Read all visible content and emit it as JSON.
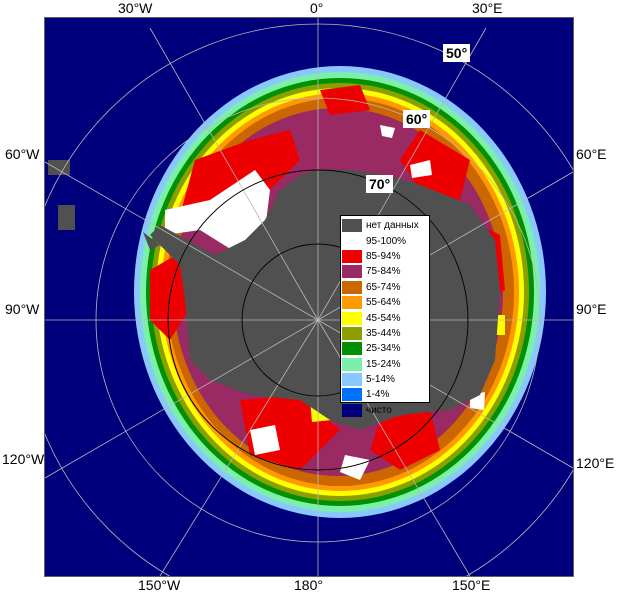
{
  "map": {
    "longitude_labels": {
      "top": [
        {
          "text": "30°W",
          "side": "top"
        },
        {
          "text": "0°",
          "side": "top"
        },
        {
          "text": "30°E",
          "side": "top"
        }
      ],
      "left": [
        "60°W",
        "90°W",
        "120°W"
      ],
      "right": [
        "60°E",
        "90°E",
        "120°E"
      ],
      "bottom": [
        "150°W",
        "180°",
        "150°E"
      ]
    },
    "latitude_labels": [
      "50°",
      "60°",
      "70°"
    ],
    "colors": {
      "no_data": "#505050",
      "ocean_clear": "#00007c",
      "frame": "#606060"
    }
  },
  "legend": {
    "items": [
      {
        "label": "нет данных",
        "color": "#505050"
      },
      {
        "label": "95-100%",
        "color": "#ffffff"
      },
      {
        "label": "85-94%",
        "color": "#ee0000"
      },
      {
        "label": "75-84%",
        "color": "#9a2a63"
      },
      {
        "label": "65-74%",
        "color": "#cc6600"
      },
      {
        "label": "55-64%",
        "color": "#ff9900"
      },
      {
        "label": "45-54%",
        "color": "#ffff00"
      },
      {
        "label": "35-44%",
        "color": "#8aa000"
      },
      {
        "label": "25-34%",
        "color": "#009000"
      },
      {
        "label": "15-24%",
        "color": "#7cf0a8"
      },
      {
        "label": "5-14%",
        "color": "#88c8ff"
      },
      {
        "label": "1-4%",
        "color": "#0070ff"
      },
      {
        "label": "чисто",
        "color": "#00007c"
      }
    ]
  }
}
